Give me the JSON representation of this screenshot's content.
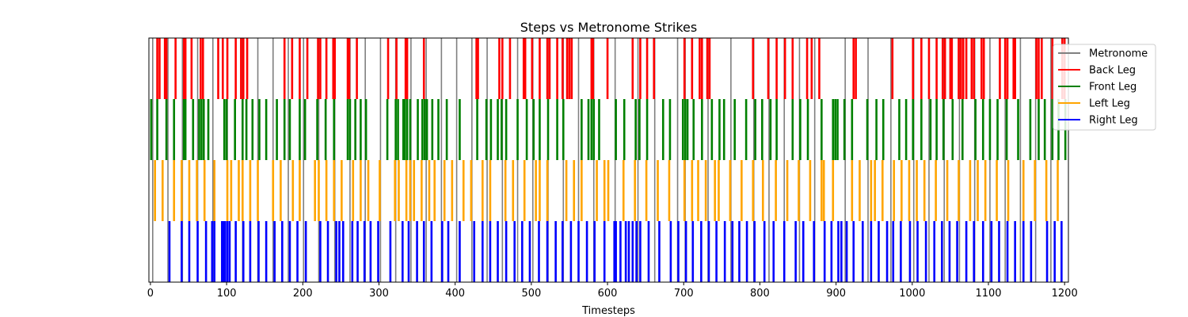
{
  "chart_data": {
    "type": "event-raster",
    "title": "Steps vs Metronome Strikes",
    "xlabel": "Timesteps",
    "ylabel": "",
    "xlim": [
      -2,
      1205
    ],
    "xticks": [
      0,
      100,
      200,
      300,
      400,
      500,
      600,
      700,
      800,
      900,
      1000,
      1100,
      1200
    ],
    "grid": false,
    "legend_position": "top-right",
    "series": [
      {
        "name": "Metronome",
        "color": "#808080",
        "row": "full",
        "events": [
          3,
          23,
          42,
          62,
          82,
          101,
          121,
          141,
          161,
          181,
          201,
          221,
          242,
          262,
          282,
          302,
          322,
          342,
          362,
          382,
          402,
          422,
          442,
          462,
          482,
          502,
          522,
          542,
          562,
          582,
          610,
          640,
          662,
          692,
          702,
          732,
          762,
          792,
          812,
          832,
          852,
          872,
          912,
          942,
          972,
          1002,
          1022,
          1042,
          1062,
          1082,
          1102,
          1122,
          1142,
          1162,
          1182
        ]
      },
      {
        "name": "Back Leg",
        "color": "#ff0000",
        "row": 0,
        "events": [
          9,
          12,
          19,
          21,
          33,
          44,
          46,
          54,
          66,
          69,
          89,
          95,
          101,
          112,
          119,
          122,
          127,
          176,
          186,
          196,
          206,
          220,
          223,
          231,
          240,
          242,
          259,
          261,
          271,
          312,
          323,
          335,
          337,
          359,
          428,
          430,
          458,
          462,
          472,
          490,
          492,
          501,
          511,
          521,
          524,
          534,
          541,
          547,
          550,
          553,
          579,
          581,
          600,
          633,
          643,
          652,
          661,
          701,
          711,
          721,
          724,
          731,
          734,
          791,
          811,
          822,
          833,
          843,
          862,
          868,
          878,
          923,
          926,
          974,
          1001,
          1012,
          1022,
          1032,
          1040,
          1043,
          1050,
          1052,
          1061,
          1064,
          1067,
          1071,
          1078,
          1081,
          1091,
          1094,
          1115,
          1122,
          1125,
          1133,
          1135,
          1163,
          1166,
          1170,
          1184,
          1197,
          1200
        ]
      },
      {
        "name": "Front Leg",
        "color": "#008000",
        "row": 1,
        "events": [
          1,
          9,
          21,
          31,
          44,
          46,
          56,
          64,
          67,
          70,
          76,
          97,
          100,
          111,
          121,
          126,
          134,
          143,
          152,
          166,
          176,
          183,
          196,
          203,
          219,
          230,
          241,
          259,
          262,
          269,
          276,
          283,
          311,
          322,
          325,
          332,
          334,
          337,
          341,
          351,
          357,
          360,
          363,
          370,
          378,
          389,
          406,
          429,
          441,
          447,
          456,
          461,
          467,
          482,
          494,
          503,
          511,
          522,
          534,
          542,
          566,
          575,
          579,
          582,
          589,
          611,
          622,
          637,
          642,
          652,
          673,
          682,
          699,
          702,
          705,
          713,
          724,
          737,
          747,
          753,
          767,
          782,
          794,
          803,
          814,
          822,
          843,
          853,
          863,
          881,
          896,
          899,
          902,
          911,
          921,
          941,
          953,
          962,
          983,
          992,
          1001,
          1012,
          1024,
          1032,
          1041,
          1053,
          1066,
          1083,
          1093,
          1102,
          1112,
          1124,
          1139,
          1155,
          1166,
          1174,
          1184,
          1192,
          1201
        ]
      },
      {
        "name": "Left Leg",
        "color": "#ffa500",
        "row": 2,
        "events": [
          6,
          16,
          31,
          41,
          51,
          61,
          71,
          84,
          101,
          106,
          116,
          121,
          131,
          141,
          161,
          171,
          187,
          196,
          216,
          221,
          231,
          241,
          251,
          266,
          276,
          286,
          301,
          321,
          326,
          336,
          341,
          346,
          356,
          366,
          373,
          386,
          396,
          411,
          421,
          436,
          446,
          466,
          476,
          491,
          506,
          511,
          521,
          546,
          556,
          566,
          586,
          596,
          601,
          621,
          636,
          651,
          666,
          681,
          701,
          711,
          719,
          729,
          741,
          746,
          761,
          776,
          791,
          804,
          821,
          836,
          851,
          866,
          881,
          884,
          896,
          921,
          931,
          946,
          951,
          961,
          976,
          986,
          996,
          1006,
          1016,
          1031,
          1046,
          1061,
          1076,
          1086,
          1096,
          1111,
          1126,
          1146,
          1161,
          1176,
          1191
        ]
      },
      {
        "name": "Right Leg",
        "color": "#0000ff",
        "row": 3,
        "events": [
          25,
          41,
          51,
          62,
          73,
          81,
          84,
          94,
          96,
          98,
          101,
          104,
          112,
          122,
          131,
          142,
          152,
          163,
          173,
          183,
          193,
          204,
          223,
          233,
          244,
          248,
          253,
          265,
          272,
          281,
          289,
          299,
          315,
          331,
          339,
          350,
          359,
          369,
          383,
          391,
          406,
          425,
          436,
          446,
          456,
          467,
          478,
          488,
          498,
          510,
          521,
          532,
          541,
          552,
          562,
          573,
          583,
          596,
          609,
          611,
          617,
          624,
          628,
          633,
          638,
          643,
          654,
          668,
          683,
          693,
          703,
          712,
          723,
          733,
          743,
          754,
          764,
          773,
          783,
          793,
          806,
          818,
          832,
          847,
          857,
          871,
          885,
          894,
          903,
          907,
          914,
          923,
          935,
          946,
          956,
          967,
          975,
          985,
          997,
          1007,
          1018,
          1029,
          1039,
          1049,
          1059,
          1071,
          1081,
          1093,
          1104,
          1114,
          1125,
          1135,
          1146,
          1156,
          1177,
          1187,
          1196
        ]
      }
    ]
  }
}
